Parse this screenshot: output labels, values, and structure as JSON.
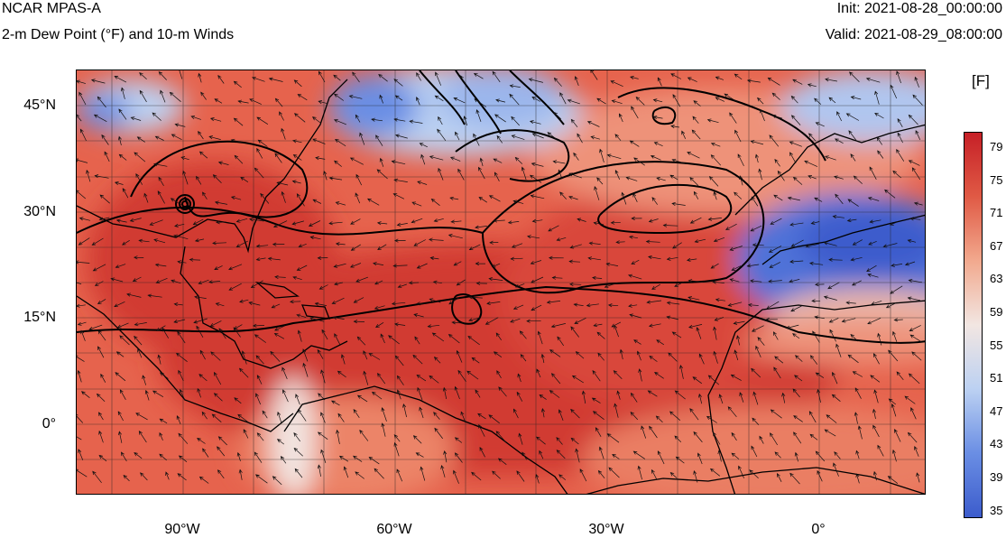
{
  "header": {
    "title": "NCAR MPAS-A",
    "subtitle": "2-m Dew Point (°F) and 10-m Winds",
    "init": "Init: 2021-08-28_00:00:00",
    "valid": "Valid: 2021-08-29_08:00:00"
  },
  "map": {
    "lat_labels": [
      "45°N",
      "30°N",
      "15°N",
      "0°"
    ],
    "lon_labels": [
      "90°W",
      "60°W",
      "30°W",
      "0°"
    ]
  },
  "colorbar": {
    "unit": "[F]",
    "labels": [
      "79",
      "75",
      "71",
      "67",
      "63",
      "59",
      "55",
      "51",
      "47",
      "43",
      "39",
      "35"
    ]
  },
  "colors": {
    "warm_dark": "#c62027",
    "warm": "#e05a45",
    "warm_light": "#f2a98e",
    "neutral": "#f2e6e2",
    "cool_light": "#bcd1f2",
    "cool": "#6a8ee4",
    "cool_dark": "#3c5ccc"
  }
}
